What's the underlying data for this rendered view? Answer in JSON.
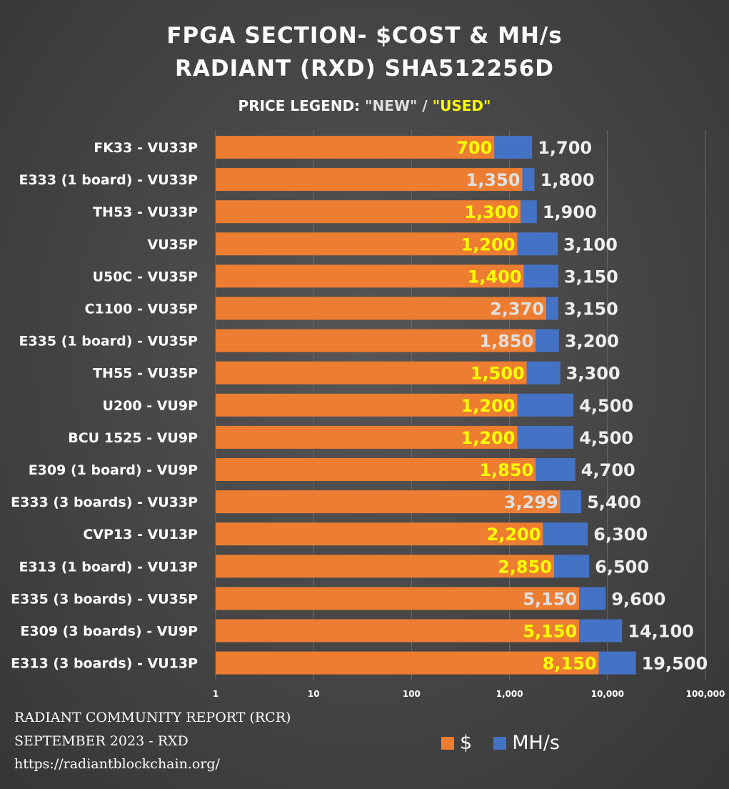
{
  "title_line1": "FPGA SECTION- $COST & MH/s",
  "title_line2": "RADIANT (RXD) SHA512256D",
  "price_legend": {
    "label": "PRICE LEGEND:",
    "new": "\"NEW\"",
    "separator": "/",
    "used": "\"USED\""
  },
  "colors": {
    "cost": "#ed7d31",
    "hashrate": "#4472c4",
    "new_price_label": "#e0e0e0",
    "used_price_label": "#ffff00",
    "background": "#444444"
  },
  "chart_data": {
    "type": "bar",
    "orientation": "horizontal",
    "stacked": true,
    "x_scale": "log",
    "xlim": [
      1,
      100000
    ],
    "x_ticks": [
      "1",
      "10",
      "100",
      "1,000",
      "10,000",
      "100,000"
    ],
    "grid": true,
    "legend_position": "bottom-right",
    "categories": [
      "FK33 - VU33P",
      "E333 (1 board) - VU33P",
      "TH53 - VU33P",
      "VU35P",
      "U50C - VU35P",
      "C1100 - VU35P",
      "E335 (1 board) - VU35P",
      "TH55 - VU35P",
      "U200 - VU9P",
      "BCU 1525 - VU9P",
      "E309 (1 board) - VU9P",
      "E333 (3 boards) - VU33P",
      "CVP13 - VU13P",
      "E313 (1 board) - VU13P",
      "E335 (3 boards) - VU35P",
      "E309 (3 boards) - VU9P",
      "E313 (3 boards) - VU13P"
    ],
    "series": [
      {
        "name": "$",
        "values": [
          700,
          1350,
          1300,
          1200,
          1400,
          2370,
          1850,
          1500,
          1200,
          1200,
          1850,
          3299,
          2200,
          2850,
          5150,
          5150,
          8150
        ],
        "labels": [
          "700",
          "1,350",
          "1,300",
          "1,200",
          "1,400",
          "2,370",
          "1,850",
          "1,500",
          "1,200",
          "1,200",
          "1,850",
          "3,299",
          "2,200",
          "2,850",
          "5,150",
          "5,150",
          "8,150"
        ],
        "condition": [
          "used",
          "new",
          "used",
          "used",
          "used",
          "new",
          "new",
          "used",
          "used",
          "used",
          "used",
          "new",
          "used",
          "used",
          "new",
          "used",
          "used"
        ]
      },
      {
        "name": "MH/s",
        "values": [
          1700,
          1800,
          1900,
          3100,
          3150,
          3150,
          3200,
          3300,
          4500,
          4500,
          4700,
          5400,
          6300,
          6500,
          9600,
          14100,
          19500
        ],
        "labels": [
          "1,700",
          "1,800",
          "1,900",
          "3,100",
          "3,150",
          "3,150",
          "3,200",
          "3,300",
          "4,500",
          "4,500",
          "4,700",
          "5,400",
          "6,300",
          "6,500",
          "9,600",
          "14,100",
          "19,500"
        ]
      }
    ]
  },
  "legend": {
    "cost_label": "$",
    "hashrate_label": "MH/s"
  },
  "footer": {
    "line1": "RADIANT COMMUNITY REPORT (RCR)",
    "line2": "SEPTEMBER 2023 - RXD",
    "line3": "https://radiantblockchain.org/"
  }
}
